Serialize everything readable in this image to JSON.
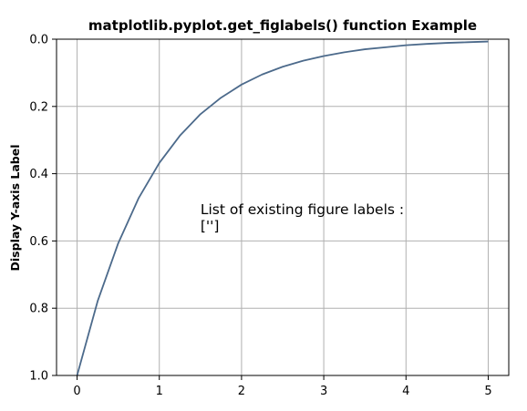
{
  "chart_data": {
    "type": "line",
    "title": "matplotlib.pyplot.get_figlabels() function Example",
    "xlabel": "",
    "ylabel": "Display Y-axis Label",
    "xlim": [
      -0.25,
      5.25
    ],
    "ylim": [
      0.0,
      1.0
    ],
    "y_inverted": true,
    "grid": true,
    "xticks": [
      0,
      1,
      2,
      3,
      4,
      5
    ],
    "xtick_labels": [
      "0",
      "1",
      "2",
      "3",
      "4",
      "5"
    ],
    "yticks": [
      0.0,
      0.2,
      0.4,
      0.6,
      0.8,
      1.0
    ],
    "ytick_labels": [
      "0.0",
      "0.2",
      "0.4",
      "0.6",
      "0.8",
      "1.0"
    ],
    "series": [
      {
        "color": "#4c6a8b",
        "x": [
          0,
          0.25,
          0.5,
          0.75,
          1.0,
          1.25,
          1.5,
          1.75,
          2.0,
          2.25,
          2.5,
          2.75,
          3.0,
          3.25,
          3.5,
          3.75,
          4.0,
          4.25,
          4.5,
          4.75,
          5.0
        ],
        "y": [
          1.0,
          0.779,
          0.607,
          0.472,
          0.368,
          0.287,
          0.223,
          0.174,
          0.135,
          0.105,
          0.082,
          0.064,
          0.05,
          0.039,
          0.03,
          0.024,
          0.018,
          0.014,
          0.011,
          0.009,
          0.007
        ]
      }
    ],
    "annotations": [
      {
        "text_lines": [
          "List of existing figure labels :",
          "['']"
        ],
        "x": 1.5,
        "y": 0.55
      }
    ]
  }
}
